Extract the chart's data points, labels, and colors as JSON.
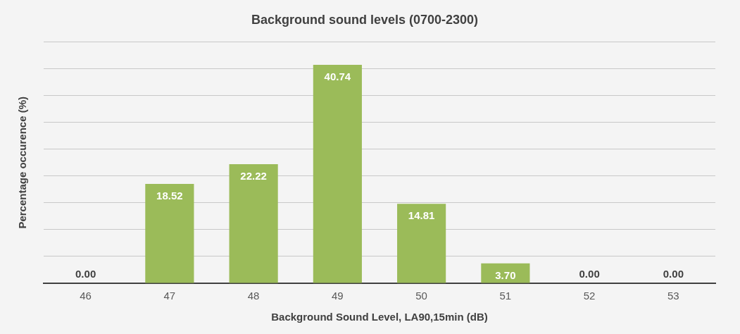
{
  "chart_data": {
    "type": "bar",
    "title": "Background sound levels (0700-2300)",
    "xlabel": "Background Sound Level, LA90,15min (dB)",
    "ylabel": "Percentage occurence (%)",
    "categories": [
      "46",
      "47",
      "48",
      "49",
      "50",
      "51",
      "52",
      "53"
    ],
    "values": [
      0.0,
      18.52,
      22.22,
      40.74,
      14.81,
      3.7,
      0.0,
      0.0
    ],
    "color": "#9bbb59",
    "ylim": [
      0,
      45
    ],
    "yticks": [
      {
        "value": 0,
        "label": null
      },
      {
        "value": 5,
        "label": null
      },
      {
        "value": 10,
        "label": null
      },
      {
        "value": 15,
        "label": null
      },
      {
        "value": 20,
        "label": null
      },
      {
        "value": 25,
        "label": null
      },
      {
        "value": 30,
        "label": null
      },
      {
        "value": 35,
        "label": null
      },
      {
        "value": 40,
        "label": null
      },
      {
        "value": 45,
        "label": null
      }
    ],
    "value_labels": [
      "0.00",
      "18.52",
      "22.22",
      "40.74",
      "14.81",
      "3.70",
      "0.00",
      "0.00"
    ],
    "grid": "y",
    "tick_labels": "x",
    "legend": false
  }
}
